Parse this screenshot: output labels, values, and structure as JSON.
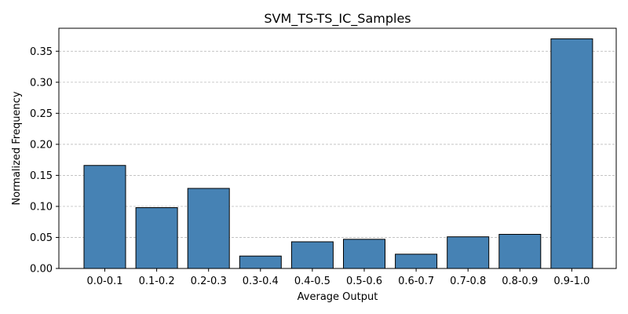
{
  "chart_data": {
    "type": "bar",
    "title": "SVM_TS-TS_IC_Samples",
    "xlabel": "Average Output",
    "ylabel": "Normalized Frequency",
    "categories": [
      "0.0-0.1",
      "0.1-0.2",
      "0.2-0.3",
      "0.3-0.4",
      "0.4-0.5",
      "0.5-0.6",
      "0.6-0.7",
      "0.7-0.8",
      "0.8-0.9",
      "0.9-1.0"
    ],
    "values": [
      0.166,
      0.098,
      0.129,
      0.02,
      0.043,
      0.047,
      0.023,
      0.051,
      0.055,
      0.37
    ],
    "ylim": [
      0,
      0.387
    ],
    "yticks": [
      0.0,
      0.05,
      0.1,
      0.15,
      0.2,
      0.25,
      0.3,
      0.35
    ],
    "ytick_labels": [
      "0.00",
      "0.05",
      "0.10",
      "0.15",
      "0.20",
      "0.25",
      "0.30",
      "0.35"
    ],
    "grid": "y-dashed",
    "colors": {
      "bar": "#4682b4",
      "bar_edge": "#000000",
      "grid": "#b0b0b0"
    }
  }
}
